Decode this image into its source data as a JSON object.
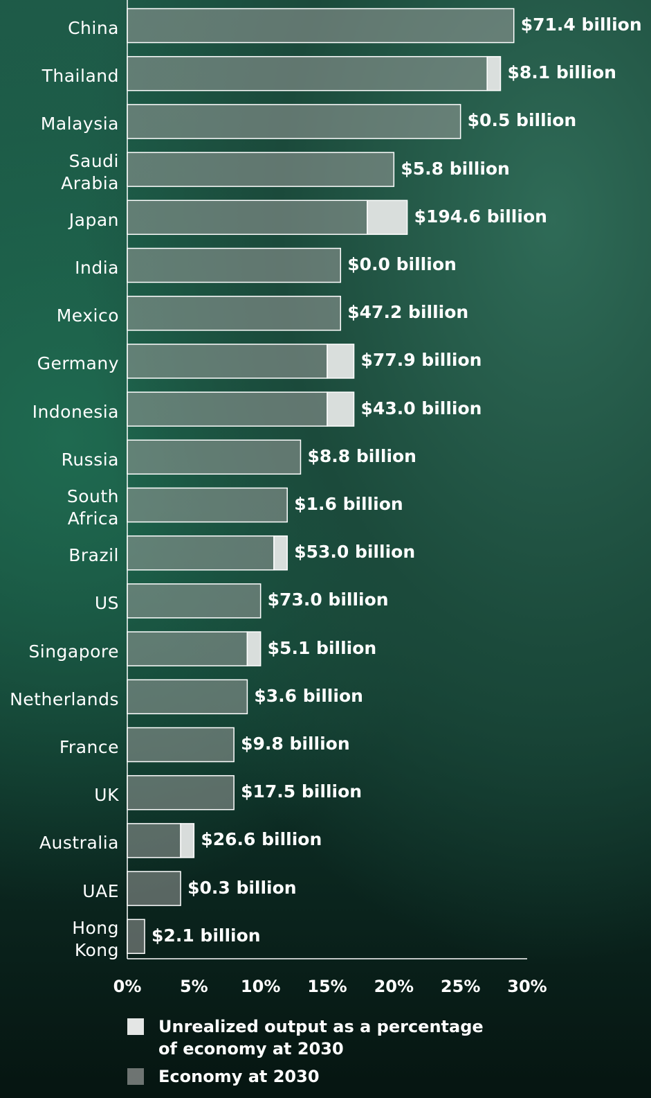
{
  "chart_data": {
    "type": "stacked_barh",
    "categories": [
      "China",
      "Thailand",
      "Malaysia",
      "Saudi\nArabia",
      "Japan",
      "India",
      "Mexico",
      "Germany",
      "Indonesia",
      "Russia",
      "South\nAfrica",
      "Brazil",
      "US",
      "Singapore",
      "Netherlands",
      "France",
      "UK",
      "Australia",
      "UAE",
      "Hong\nKong"
    ],
    "series": [
      {
        "name": "Economy at 2030",
        "color": "#9a9d9b",
        "values": [
          29.0,
          27.0,
          25.0,
          20.0,
          18.0,
          16.0,
          16.0,
          15.0,
          15.0,
          13.0,
          12.0,
          11.0,
          10.0,
          9.0,
          9.0,
          8.0,
          8.0,
          4.0,
          4.0,
          1.3
        ]
      },
      {
        "name": "Unrealized output as a percentage of economy at 2030",
        "color": "#e4e6e5",
        "values": [
          0,
          1.0,
          0,
          0,
          3.0,
          0,
          0,
          2.0,
          2.0,
          0,
          0,
          1.0,
          0,
          1.0,
          0,
          0,
          0,
          1.0,
          0,
          0
        ]
      }
    ],
    "annotations": [
      "$71.4 billion",
      "$8.1 billion",
      "$0.5 billion",
      "$5.8 billion",
      "$194.6 billion",
      "$0.0 billion",
      "$47.2 billion",
      "$77.9 billion",
      "$43.0 billion",
      "$8.8 billion",
      "$1.6 billion",
      "$53.0 billion",
      "$73.0 billion",
      "$5.1 billion",
      "$3.6 billion",
      "$9.8 billion",
      "$17.5 billion",
      "$26.6 billion",
      "$0.3 billion",
      "$2.1 billion"
    ],
    "xlim": [
      0,
      30
    ],
    "xticks": [
      {
        "value": 0,
        "label": "0%"
      },
      {
        "value": 5,
        "label": "5%"
      },
      {
        "value": 10,
        "label": "10%"
      },
      {
        "value": 15,
        "label": "15%"
      },
      {
        "value": 20,
        "label": "20%"
      },
      {
        "value": 25,
        "label": "25%"
      },
      {
        "value": 30,
        "label": "30%"
      }
    ]
  }
}
